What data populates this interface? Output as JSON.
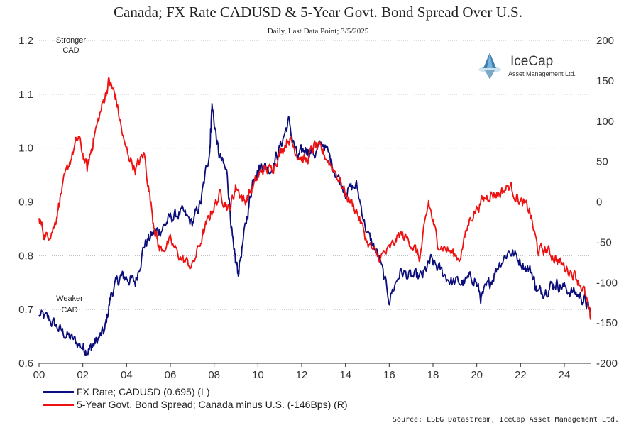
{
  "chart_data": {
    "type": "line",
    "title": "Canada; FX Rate CADUSD & 5-Year Govt. Bond Spread Over U.S.",
    "subtitle": "Daily, Last Data Point; 3/5/2025",
    "x_tick_labels": [
      "00",
      "02",
      "04",
      "06",
      "08",
      "10",
      "12",
      "14",
      "16",
      "18",
      "20",
      "22",
      "24"
    ],
    "x_range": [
      2000,
      2025.2
    ],
    "y_left": {
      "ticks": [
        "0.6",
        "0.7",
        "0.8",
        "0.9",
        "1.0",
        "1.1",
        "1.2"
      ],
      "range": [
        0.6,
        1.2
      ]
    },
    "y_right": {
      "ticks": [
        "-200",
        "-150",
        "-100",
        "-50",
        "0",
        "50",
        "100",
        "150",
        "200"
      ],
      "range": [
        -200,
        200
      ]
    },
    "grid": "horizontal dotted",
    "annotations": {
      "top": [
        "Stronger",
        "CAD"
      ],
      "bottom": [
        "Weaker",
        "CAD"
      ]
    },
    "series": [
      {
        "name": "FX Rate; CADUSD (0.695) (L)",
        "axis": "left",
        "color": "#0b0d7a",
        "points": [
          [
            2000.0,
            0.69
          ],
          [
            2000.5,
            0.68
          ],
          [
            2001.0,
            0.66
          ],
          [
            2001.5,
            0.645
          ],
          [
            2002.0,
            0.63
          ],
          [
            2002.3,
            0.625
          ],
          [
            2002.6,
            0.64
          ],
          [
            2003.0,
            0.66
          ],
          [
            2003.3,
            0.73
          ],
          [
            2003.7,
            0.76
          ],
          [
            2004.0,
            0.76
          ],
          [
            2004.4,
            0.75
          ],
          [
            2004.8,
            0.82
          ],
          [
            2005.2,
            0.84
          ],
          [
            2005.6,
            0.85
          ],
          [
            2006.0,
            0.87
          ],
          [
            2006.5,
            0.88
          ],
          [
            2007.0,
            0.86
          ],
          [
            2007.4,
            0.9
          ],
          [
            2007.8,
            1.0
          ],
          [
            2007.9,
            1.08
          ],
          [
            2008.2,
            0.99
          ],
          [
            2008.6,
            0.95
          ],
          [
            2008.9,
            0.8
          ],
          [
            2009.1,
            0.77
          ],
          [
            2009.5,
            0.87
          ],
          [
            2009.8,
            0.95
          ],
          [
            2010.2,
            0.97
          ],
          [
            2010.6,
            0.96
          ],
          [
            2011.0,
            1.0
          ],
          [
            2011.4,
            1.05
          ],
          [
            2011.8,
            0.98
          ],
          [
            2012.2,
            1.0
          ],
          [
            2012.6,
            0.99
          ],
          [
            2013.0,
            1.01
          ],
          [
            2013.5,
            0.96
          ],
          [
            2014.0,
            0.92
          ],
          [
            2014.5,
            0.93
          ],
          [
            2015.0,
            0.84
          ],
          [
            2015.5,
            0.8
          ],
          [
            2016.0,
            0.72
          ],
          [
            2016.5,
            0.77
          ],
          [
            2017.0,
            0.76
          ],
          [
            2017.5,
            0.76
          ],
          [
            2017.9,
            0.79
          ],
          [
            2018.4,
            0.77
          ],
          [
            2018.9,
            0.75
          ],
          [
            2019.4,
            0.75
          ],
          [
            2019.9,
            0.76
          ],
          [
            2020.2,
            0.72
          ],
          [
            2020.6,
            0.75
          ],
          [
            2021.0,
            0.785
          ],
          [
            2021.5,
            0.81
          ],
          [
            2022.0,
            0.79
          ],
          [
            2022.5,
            0.77
          ],
          [
            2022.8,
            0.73
          ],
          [
            2023.2,
            0.74
          ],
          [
            2023.6,
            0.75
          ],
          [
            2024.0,
            0.74
          ],
          [
            2024.5,
            0.73
          ],
          [
            2024.9,
            0.72
          ],
          [
            2025.2,
            0.695
          ]
        ]
      },
      {
        "name": "5-Year Govt. Bond Spread; Canada minus U.S. (-146Bps) (R)",
        "axis": "right",
        "color": "#ee1111",
        "points": [
          [
            2000.0,
            -20
          ],
          [
            2000.3,
            -45
          ],
          [
            2000.7,
            -30
          ],
          [
            2001.0,
            10
          ],
          [
            2001.4,
            50
          ],
          [
            2001.8,
            80
          ],
          [
            2002.2,
            40
          ],
          [
            2002.5,
            80
          ],
          [
            2002.9,
            120
          ],
          [
            2003.2,
            150
          ],
          [
            2003.5,
            130
          ],
          [
            2003.9,
            70
          ],
          [
            2004.4,
            40
          ],
          [
            2004.8,
            60
          ],
          [
            2005.2,
            -20
          ],
          [
            2005.5,
            -60
          ],
          [
            2006.0,
            -50
          ],
          [
            2006.5,
            -70
          ],
          [
            2007.0,
            -80
          ],
          [
            2007.5,
            -40
          ],
          [
            2007.9,
            -10
          ],
          [
            2008.3,
            10
          ],
          [
            2008.7,
            -10
          ],
          [
            2009.0,
            20
          ],
          [
            2009.4,
            0
          ],
          [
            2009.8,
            20
          ],
          [
            2010.2,
            40
          ],
          [
            2010.6,
            40
          ],
          [
            2011.0,
            60
          ],
          [
            2011.4,
            80
          ],
          [
            2011.8,
            60
          ],
          [
            2012.2,
            50
          ],
          [
            2012.6,
            70
          ],
          [
            2013.0,
            60
          ],
          [
            2013.5,
            40
          ],
          [
            2014.0,
            10
          ],
          [
            2014.5,
            -10
          ],
          [
            2015.0,
            -50
          ],
          [
            2015.5,
            -70
          ],
          [
            2016.0,
            -60
          ],
          [
            2016.5,
            -40
          ],
          [
            2017.0,
            -50
          ],
          [
            2017.4,
            -70
          ],
          [
            2017.8,
            0
          ],
          [
            2018.2,
            -50
          ],
          [
            2018.7,
            -60
          ],
          [
            2019.2,
            -70
          ],
          [
            2019.7,
            -20
          ],
          [
            2020.2,
            0
          ],
          [
            2020.6,
            10
          ],
          [
            2021.0,
            10
          ],
          [
            2021.5,
            20
          ],
          [
            2022.0,
            0
          ],
          [
            2022.4,
            -10
          ],
          [
            2022.8,
            -60
          ],
          [
            2023.2,
            -60
          ],
          [
            2023.6,
            -70
          ],
          [
            2024.0,
            -80
          ],
          [
            2024.5,
            -90
          ],
          [
            2024.9,
            -110
          ],
          [
            2025.2,
            -146
          ]
        ]
      }
    ]
  },
  "logo": {
    "name": "IceCap",
    "subtitle": "Asset Management Ltd."
  },
  "source": "Source: LSEG Datastream, IceCap Asset Management Ltd."
}
